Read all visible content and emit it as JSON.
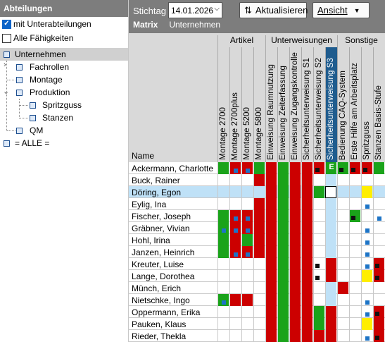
{
  "left_panel": {
    "title": "Abteilungen",
    "option_sub": "mit Unterabteilungen",
    "option_all": "Alle Fähigkeiten",
    "tree": {
      "root": "Unternehmen",
      "fachrollen": "Fachrollen",
      "montage": "Montage",
      "produktion": "Produktion",
      "spritzguss": "Spritzguss",
      "stanzen": "Stanzen",
      "qm": "QM",
      "alle": "= ALLE ="
    }
  },
  "toolbar": {
    "stichtag_label": "Stichtag",
    "date_value": "14.01.2026",
    "refresh_label": "Aktualisieren",
    "view_label": "Ansicht",
    "tab_matrix": "Matrix",
    "tab_company": "Unternehmen"
  },
  "matrix": {
    "name_header": "Name",
    "categories": [
      "Artikel",
      "Unterweisungen",
      "Sonstige"
    ],
    "columns": [
      "Montage 2700",
      "Montage 2700plus",
      "Montage 5200",
      "Montage 5800",
      "Einweisung Raumnutzung",
      "Einweisung Zeiterfassung",
      "Einweisung Zugangskontrolle",
      "Sicherheitsunterweisung S1",
      "Sicherheitsunterweisung S2",
      "Sicherheitsunterweisung S3",
      "Bedienung CAQ-System",
      "Erste Hilfe am Arbeitsplatz",
      "Spritzguss",
      "Stanzen Basis-Stufe"
    ],
    "cell_marker": "E",
    "rows": [
      {
        "name": "Ackermann, Charlotte"
      },
      {
        "name": "Buck, Rainer"
      },
      {
        "name": "Döring, Egon"
      },
      {
        "name": "Eylig, Ina"
      },
      {
        "name": "Fischer, Joseph"
      },
      {
        "name": "Gräbner, Vivian"
      },
      {
        "name": "Hohl, Irina"
      },
      {
        "name": "Janzen, Heinrich"
      },
      {
        "name": "Kreuter, Luise"
      },
      {
        "name": "Lange, Dorothea"
      },
      {
        "name": "Münch, Erich"
      },
      {
        "name": "Nietschke, Ingo"
      },
      {
        "name": "Oppermann, Erika"
      },
      {
        "name": "Pauken, Klaus"
      },
      {
        "name": "Rieder, Thekla"
      }
    ]
  },
  "colors": {
    "red": "#cc0000",
    "green": "#1aa31a",
    "yellow": "#ffee00",
    "blue_dot": "#1d74c6",
    "highlight_col": "#bfe1f7",
    "header_bg": "#d9d9d9",
    "toolbar_bg": "#7d7d7d"
  }
}
